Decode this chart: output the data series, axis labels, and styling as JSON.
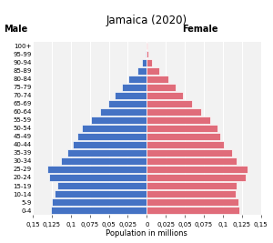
{
  "title": "Jamaica (2020)",
  "xlabel": "Population in millions",
  "male_label": "Male",
  "female_label": "Female",
  "age_groups": [
    "0-4",
    "5-9",
    "10-14",
    "15-19",
    "20-24",
    "25-29",
    "30-34",
    "35-39",
    "40-44",
    "45-49",
    "50-54",
    "55-59",
    "60-64",
    "65-69",
    "70-74",
    "75-79",
    "80-84",
    "85-89",
    "90-94",
    "95-99",
    "100+"
  ],
  "male_values": [
    0.1265,
    0.1255,
    0.121,
    0.1175,
    0.128,
    0.131,
    0.113,
    0.105,
    0.097,
    0.091,
    0.085,
    0.073,
    0.062,
    0.051,
    0.042,
    0.033,
    0.024,
    0.013,
    0.006,
    0.002,
    0.0005
  ],
  "female_values": [
    0.122,
    0.121,
    0.117,
    0.118,
    0.13,
    0.133,
    0.118,
    0.112,
    0.101,
    0.096,
    0.093,
    0.083,
    0.072,
    0.059,
    0.048,
    0.038,
    0.028,
    0.016,
    0.007,
    0.002,
    0.0008
  ],
  "male_color": "#4472C4",
  "female_color": "#E06C7A",
  "plot_bg_color": "#f2f2f2",
  "fig_bg_color": "#ffffff",
  "grid_color": "#ffffff",
  "xlim": 0.15,
  "xtick_positions": [
    -0.15,
    -0.125,
    -0.1,
    -0.075,
    -0.05,
    -0.025,
    0,
    0.025,
    0.05,
    0.075,
    0.1,
    0.125,
    0.15
  ],
  "xtick_labels": [
    "0,15",
    "0,125",
    "0,1",
    "0,075",
    "0,05",
    "0,025",
    "0",
    "0,025",
    "0,05",
    "0,075",
    "0,1",
    "0,125",
    "0,15"
  ],
  "title_fontsize": 8.5,
  "xlabel_fontsize": 6,
  "xtick_fontsize": 5,
  "ytick_fontsize": 5,
  "gender_label_fontsize": 7,
  "bar_height": 0.85,
  "bar_edgecolor": "#ffffff",
  "bar_linewidth": 0.5
}
